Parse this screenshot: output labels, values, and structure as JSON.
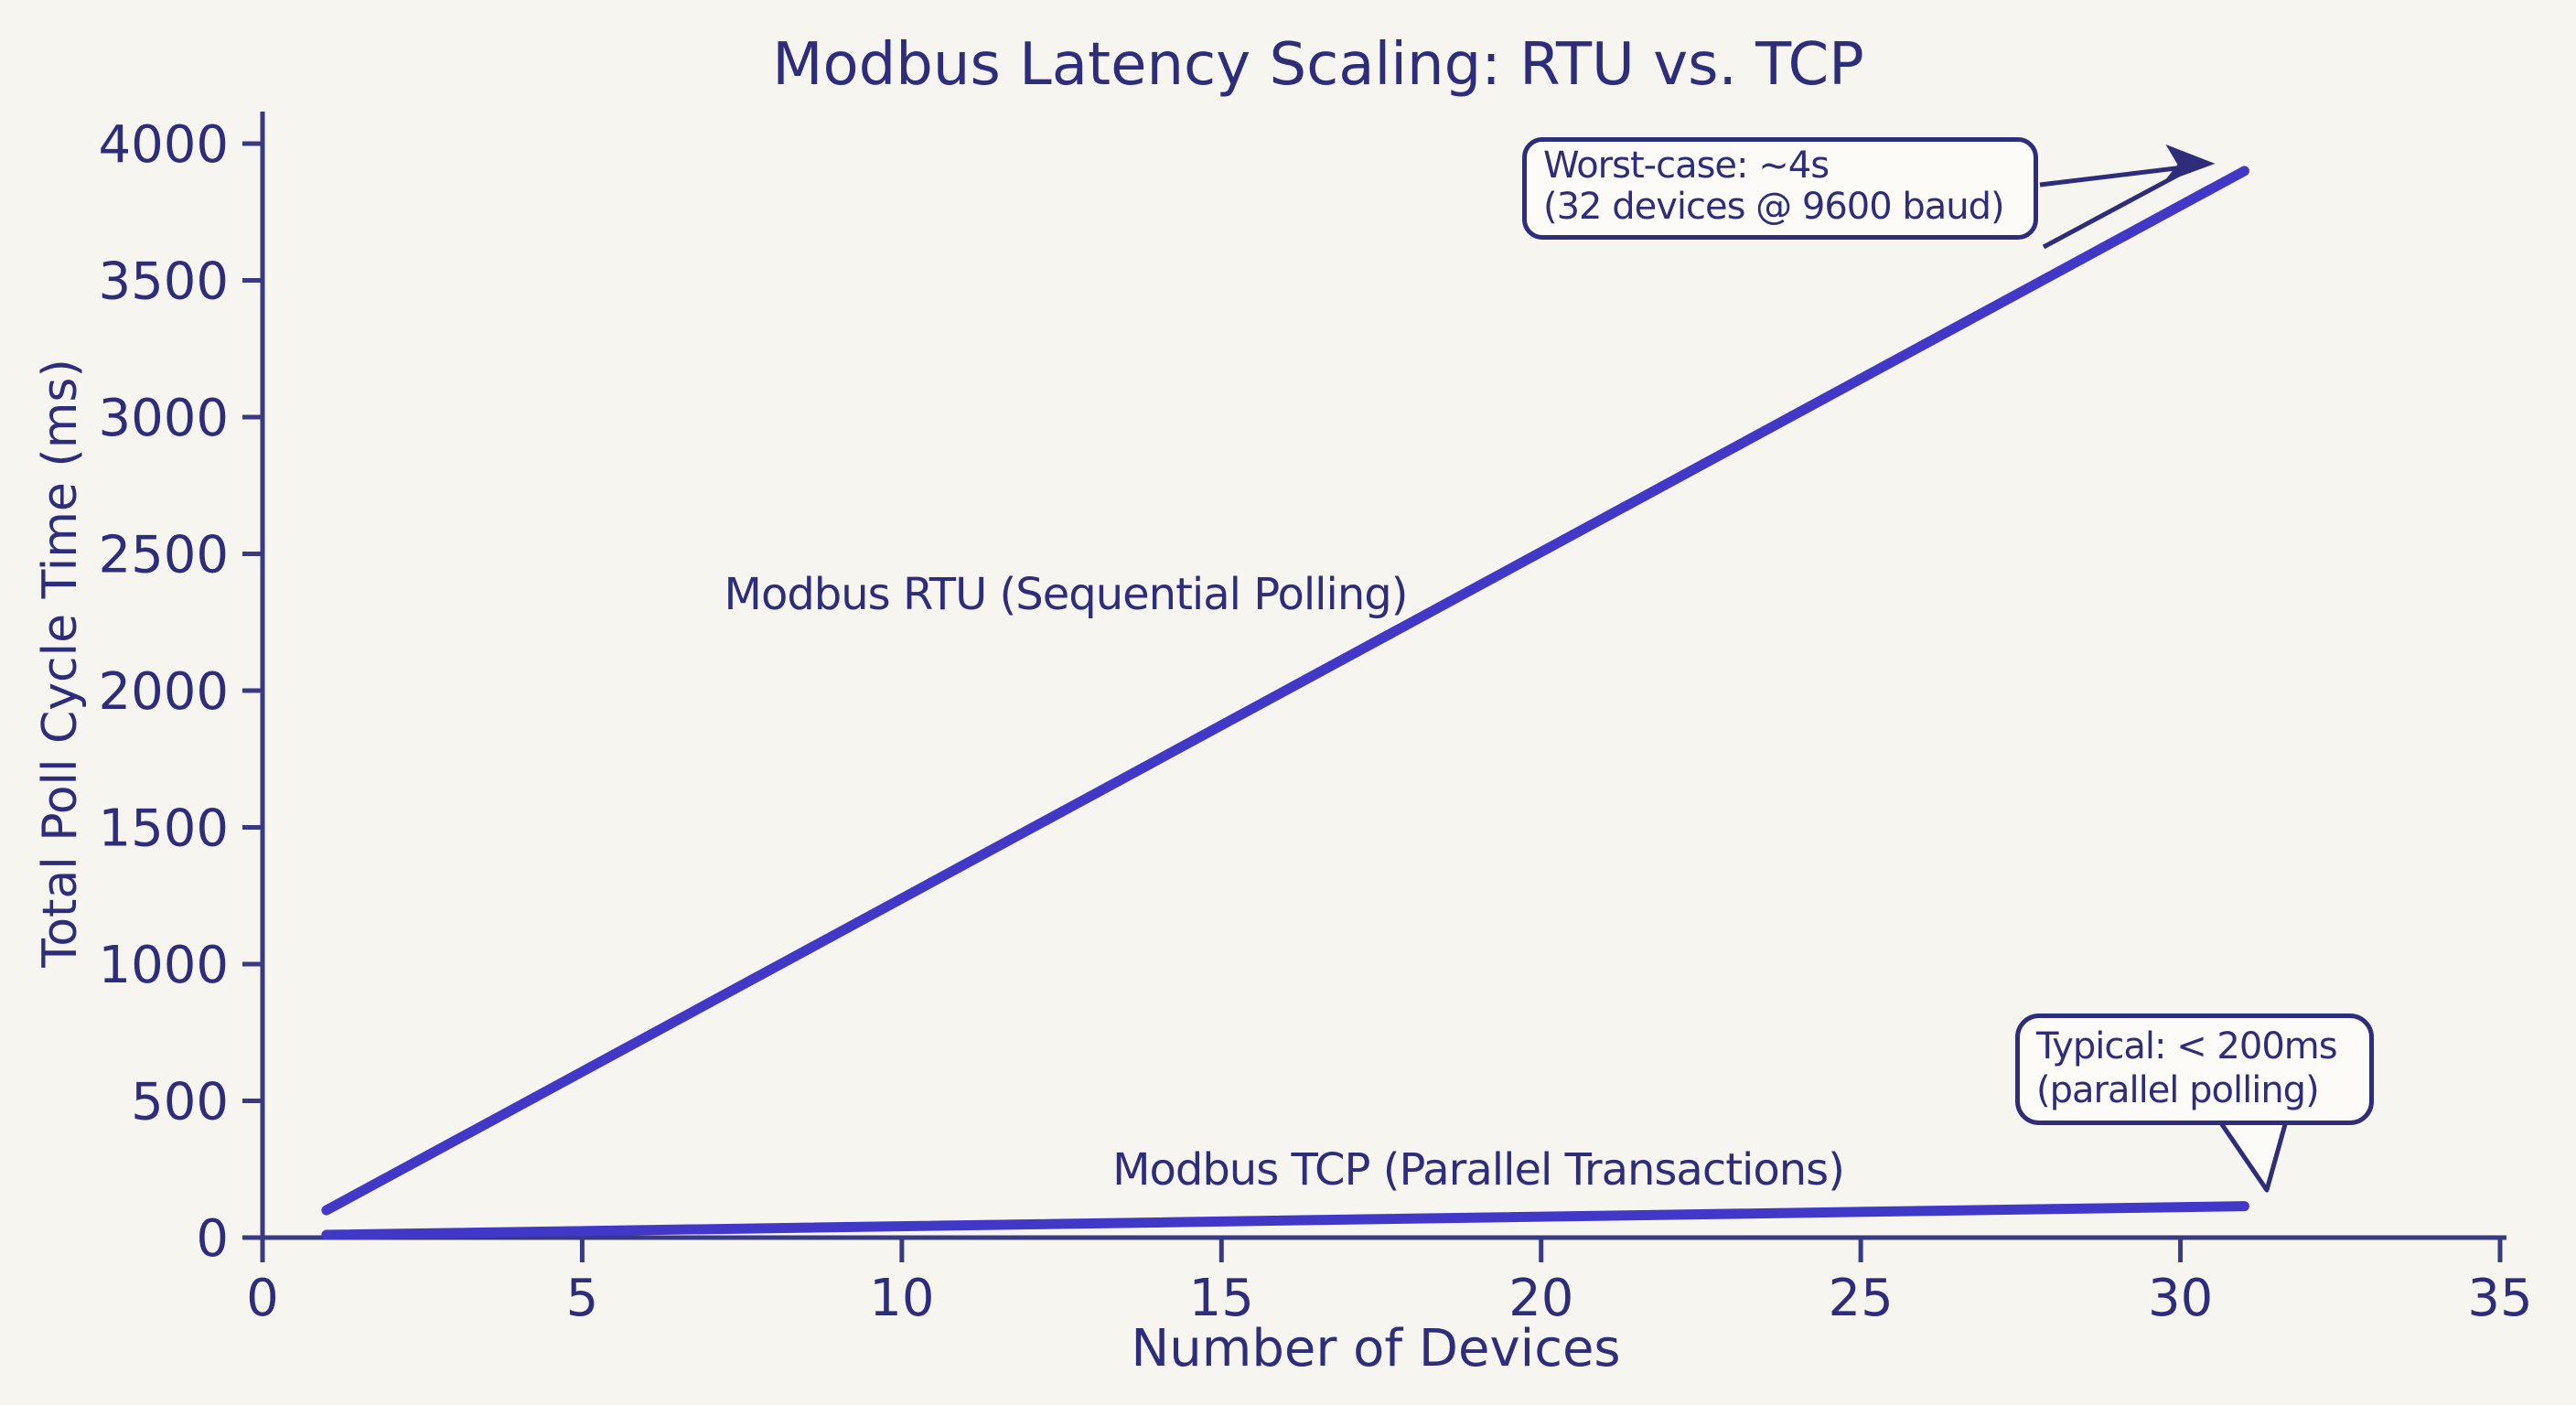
{
  "colors": {
    "background": "#f7f5f0",
    "ink": "#2d2d7b",
    "axis": "#3a3a84",
    "series_line": "#4138c8",
    "callout_fill": "#fcfbf7"
  },
  "title": "Modbus Latency Scaling: RTU vs. TCP",
  "chart_data": {
    "type": "line",
    "title": "Modbus Latency Scaling: RTU vs. TCP",
    "xlabel": "Number of Devices",
    "ylabel": "Total Poll Cycle Time (ms)",
    "xlim": [
      0,
      35
    ],
    "ylim": [
      0,
      4000
    ],
    "x_ticks": [
      0,
      5,
      10,
      15,
      20,
      25,
      30,
      35
    ],
    "y_ticks": [
      0,
      500,
      1000,
      1500,
      2000,
      2500,
      3000,
      3500,
      4000
    ],
    "grid": false,
    "legend_position": "inline-labels",
    "series": [
      {
        "name": "rtu",
        "label": "Modbus RTU (Sequential Polling)",
        "x": [
          1,
          31
        ],
        "y": [
          100,
          3900
        ]
      },
      {
        "name": "tcp",
        "label": "Modbus TCP (Parallel Transactions)",
        "x": [
          1,
          31
        ],
        "y": [
          10,
          115
        ]
      }
    ],
    "annotations": [
      {
        "name": "worst-case",
        "line1": "Worst-case: ~4s",
        "line2": "(32 devices @ 9600 baud)",
        "points_to": {
          "x": 31,
          "y": 3900
        }
      },
      {
        "name": "typical",
        "line1": "Typical: < 200ms",
        "line2": "(parallel polling)",
        "points_to": {
          "x": 31,
          "y": 115
        }
      }
    ]
  }
}
